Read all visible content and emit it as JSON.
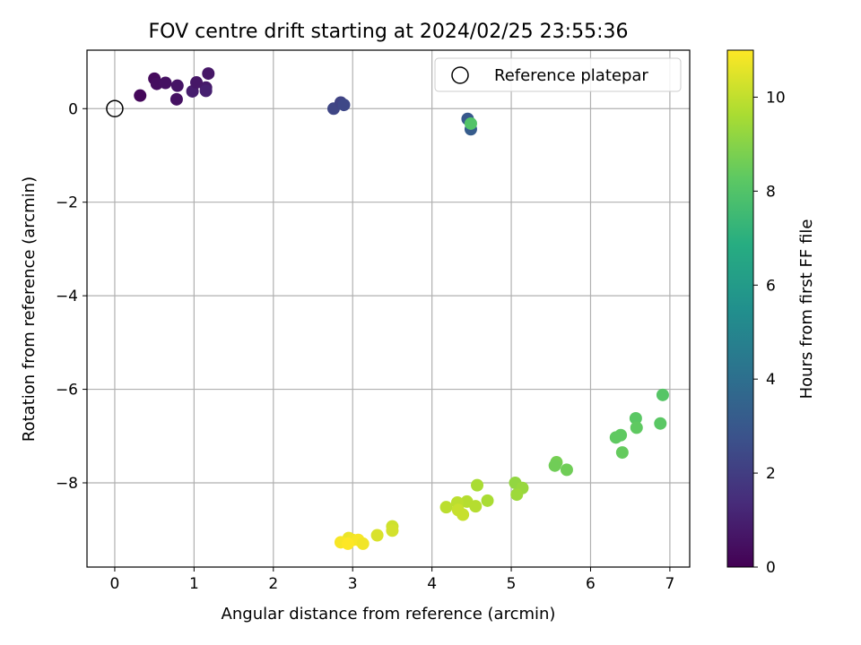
{
  "chart_data": {
    "type": "scatter",
    "title": "FOV centre drift starting at 2024/02/25 23:55:36",
    "xlabel": "Angular distance from reference (arcmin)",
    "ylabel": "Rotation from reference (arcmin)",
    "xlim": [
      -0.35,
      7.25
    ],
    "ylim": [
      -9.8,
      1.25
    ],
    "xticks": [
      0,
      1,
      2,
      3,
      4,
      5,
      6,
      7
    ],
    "yticks": [
      0,
      -2,
      -4,
      -6,
      -8
    ],
    "grid": true,
    "legend": {
      "location": "top-right",
      "entries": [
        "Reference platepar"
      ]
    },
    "reference_point": {
      "x": 0,
      "y": 0,
      "label": "Reference platepar"
    },
    "colorbar": {
      "label": "Hours from first FF file",
      "colormap": "viridis",
      "range": [
        0,
        11
      ],
      "ticks": [
        0,
        2,
        4,
        6,
        8,
        10
      ]
    },
    "points": [
      {
        "x": 0.32,
        "y": 0.28,
        "hours": 0.2
      },
      {
        "x": 0.5,
        "y": 0.64,
        "hours": 0.3
      },
      {
        "x": 0.53,
        "y": 0.53,
        "hours": 0.4
      },
      {
        "x": 0.64,
        "y": 0.55,
        "hours": 0.5
      },
      {
        "x": 0.79,
        "y": 0.49,
        "hours": 0.6
      },
      {
        "x": 0.78,
        "y": 0.2,
        "hours": 0.5
      },
      {
        "x": 0.98,
        "y": 0.37,
        "hours": 0.9
      },
      {
        "x": 1.03,
        "y": 0.56,
        "hours": 0.7
      },
      {
        "x": 1.15,
        "y": 0.45,
        "hours": 0.8
      },
      {
        "x": 1.15,
        "y": 0.38,
        "hours": 1.0
      },
      {
        "x": 1.18,
        "y": 0.75,
        "hours": 0.7
      },
      {
        "x": 2.76,
        "y": 0.0,
        "hours": 2.3
      },
      {
        "x": 2.85,
        "y": 0.13,
        "hours": 2.2
      },
      {
        "x": 2.89,
        "y": 0.08,
        "hours": 2.4
      },
      {
        "x": 4.45,
        "y": -0.22,
        "hours": 3.0
      },
      {
        "x": 4.49,
        "y": -0.44,
        "hours": 3.2
      },
      {
        "x": 4.49,
        "y": -0.32,
        "hours": 8.0
      },
      {
        "x": 6.91,
        "y": -6.12,
        "hours": 8.1
      },
      {
        "x": 6.57,
        "y": -6.62,
        "hours": 8.2
      },
      {
        "x": 6.88,
        "y": -6.73,
        "hours": 8.2
      },
      {
        "x": 6.58,
        "y": -6.82,
        "hours": 8.3
      },
      {
        "x": 6.38,
        "y": -6.98,
        "hours": 8.3
      },
      {
        "x": 6.32,
        "y": -7.03,
        "hours": 8.3
      },
      {
        "x": 6.4,
        "y": -7.35,
        "hours": 8.4
      },
      {
        "x": 5.7,
        "y": -7.72,
        "hours": 8.6
      },
      {
        "x": 5.57,
        "y": -7.56,
        "hours": 8.7
      },
      {
        "x": 5.55,
        "y": -7.63,
        "hours": 8.6
      },
      {
        "x": 5.05,
        "y": -8.0,
        "hours": 9.2
      },
      {
        "x": 5.14,
        "y": -8.11,
        "hours": 9.3
      },
      {
        "x": 5.07,
        "y": -8.25,
        "hours": 9.4
      },
      {
        "x": 4.57,
        "y": -8.05,
        "hours": 9.6
      },
      {
        "x": 4.7,
        "y": -8.38,
        "hours": 9.6
      },
      {
        "x": 4.55,
        "y": -8.5,
        "hours": 9.8
      },
      {
        "x": 4.44,
        "y": -8.4,
        "hours": 9.8
      },
      {
        "x": 4.32,
        "y": -8.42,
        "hours": 9.9
      },
      {
        "x": 4.18,
        "y": -8.52,
        "hours": 9.9
      },
      {
        "x": 4.33,
        "y": -8.58,
        "hours": 10.1
      },
      {
        "x": 4.39,
        "y": -8.68,
        "hours": 10.1
      },
      {
        "x": 3.5,
        "y": -8.93,
        "hours": 10.2
      },
      {
        "x": 3.5,
        "y": -9.02,
        "hours": 10.3
      },
      {
        "x": 3.31,
        "y": -9.12,
        "hours": 10.4
      },
      {
        "x": 2.95,
        "y": -9.18,
        "hours": 10.7
      },
      {
        "x": 3.0,
        "y": -9.22,
        "hours": 10.8
      },
      {
        "x": 3.07,
        "y": -9.22,
        "hours": 10.9
      },
      {
        "x": 3.13,
        "y": -9.3,
        "hours": 10.8
      },
      {
        "x": 2.85,
        "y": -9.27,
        "hours": 10.9
      },
      {
        "x": 2.94,
        "y": -9.3,
        "hours": 11.0
      }
    ]
  }
}
